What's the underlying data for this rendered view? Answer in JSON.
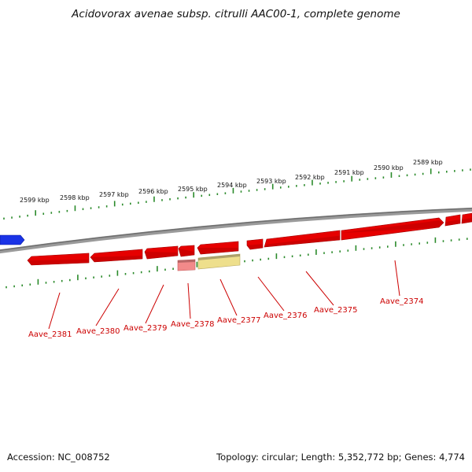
{
  "title": "Acidovorax avenae subsp. citrulli AAC00-1, complete genome",
  "footer": {
    "accession": "Accession: NC_008752",
    "summary": "Topology: circular; Length: 5,352,772 bp; Genes: 4,774"
  },
  "colors": {
    "gene_forward": "#e60000",
    "gene_reverse": "#e60000",
    "gene_pseudo": "#f28a8a",
    "gene_other": "#eedf8c",
    "gene_offscreen": "#1a33e6",
    "tick": "#2a8a2a",
    "backbone": "#808080",
    "label_line": "#cc0000"
  },
  "upper_ticks": [
    {
      "label": "2599 kbp"
    },
    {
      "label": "2598 kbp"
    },
    {
      "label": "2597 kbp"
    },
    {
      "label": "2596 kbp"
    },
    {
      "label": "2595 kbp"
    },
    {
      "label": "2594 kbp"
    },
    {
      "label": "2593 kbp"
    },
    {
      "label": "2592 kbp"
    },
    {
      "label": "2591 kbp"
    },
    {
      "label": "2590 kbp"
    },
    {
      "label": "2589 kbp"
    }
  ],
  "genes": [
    {
      "name": "Aave_2381",
      "strand": "-"
    },
    {
      "name": "Aave_2380",
      "strand": "-"
    },
    {
      "name": "Aave_2379",
      "strand": "-"
    },
    {
      "name": "Aave_2378",
      "strand": "-"
    },
    {
      "name": "Aave_2377",
      "strand": "-"
    },
    {
      "name": "Aave_2376",
      "strand": "+"
    },
    {
      "name": "Aave_2375",
      "strand": "+"
    },
    {
      "name": "Aave_2374",
      "strand": "+"
    }
  ]
}
